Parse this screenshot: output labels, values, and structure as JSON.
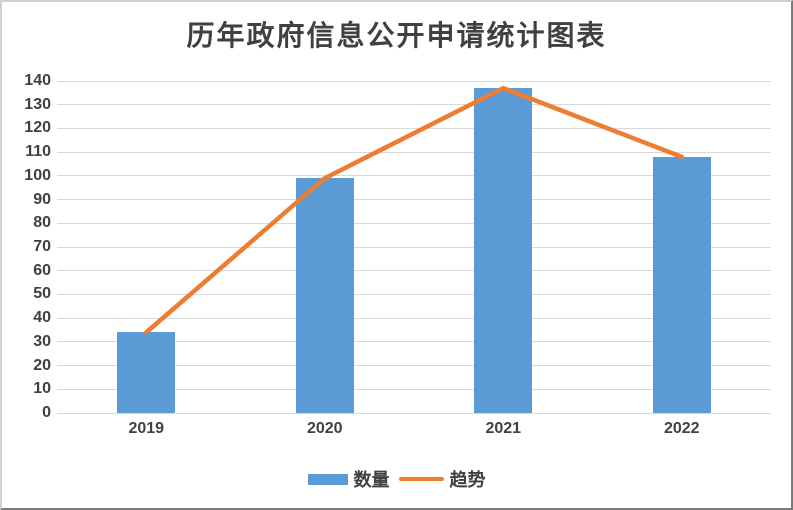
{
  "chart": {
    "colors": {
      "bar": "#5B9BD5",
      "line": "#ED7D31",
      "gridline": "#D9D9D9",
      "axis_text": "#404040",
      "title_text": "#404040"
    },
    "legend": [
      {
        "label": "数量",
        "swatch": "bar",
        "color": "#5B9BD5"
      },
      {
        "label": "趋势",
        "swatch": "line",
        "color": "#ED7D31"
      }
    ]
  },
  "chart_data": {
    "type": "bar",
    "title": "历年政府信息公开申请统计图表",
    "categories": [
      "2019",
      "2020",
      "2021",
      "2022"
    ],
    "series": [
      {
        "name": "数量",
        "type": "bar",
        "color": "#5B9BD5",
        "values": [
          34,
          99,
          137,
          108
        ]
      },
      {
        "name": "趋势",
        "type": "line",
        "color": "#ED7D31",
        "values": [
          34,
          99,
          137,
          108
        ]
      }
    ],
    "xlabel": "",
    "ylabel": "",
    "ylim": [
      0,
      140
    ],
    "yticks": [
      0,
      10,
      20,
      30,
      40,
      50,
      60,
      70,
      80,
      90,
      100,
      110,
      120,
      130,
      140
    ],
    "grid": "horizontal",
    "legend_position": "bottom"
  }
}
